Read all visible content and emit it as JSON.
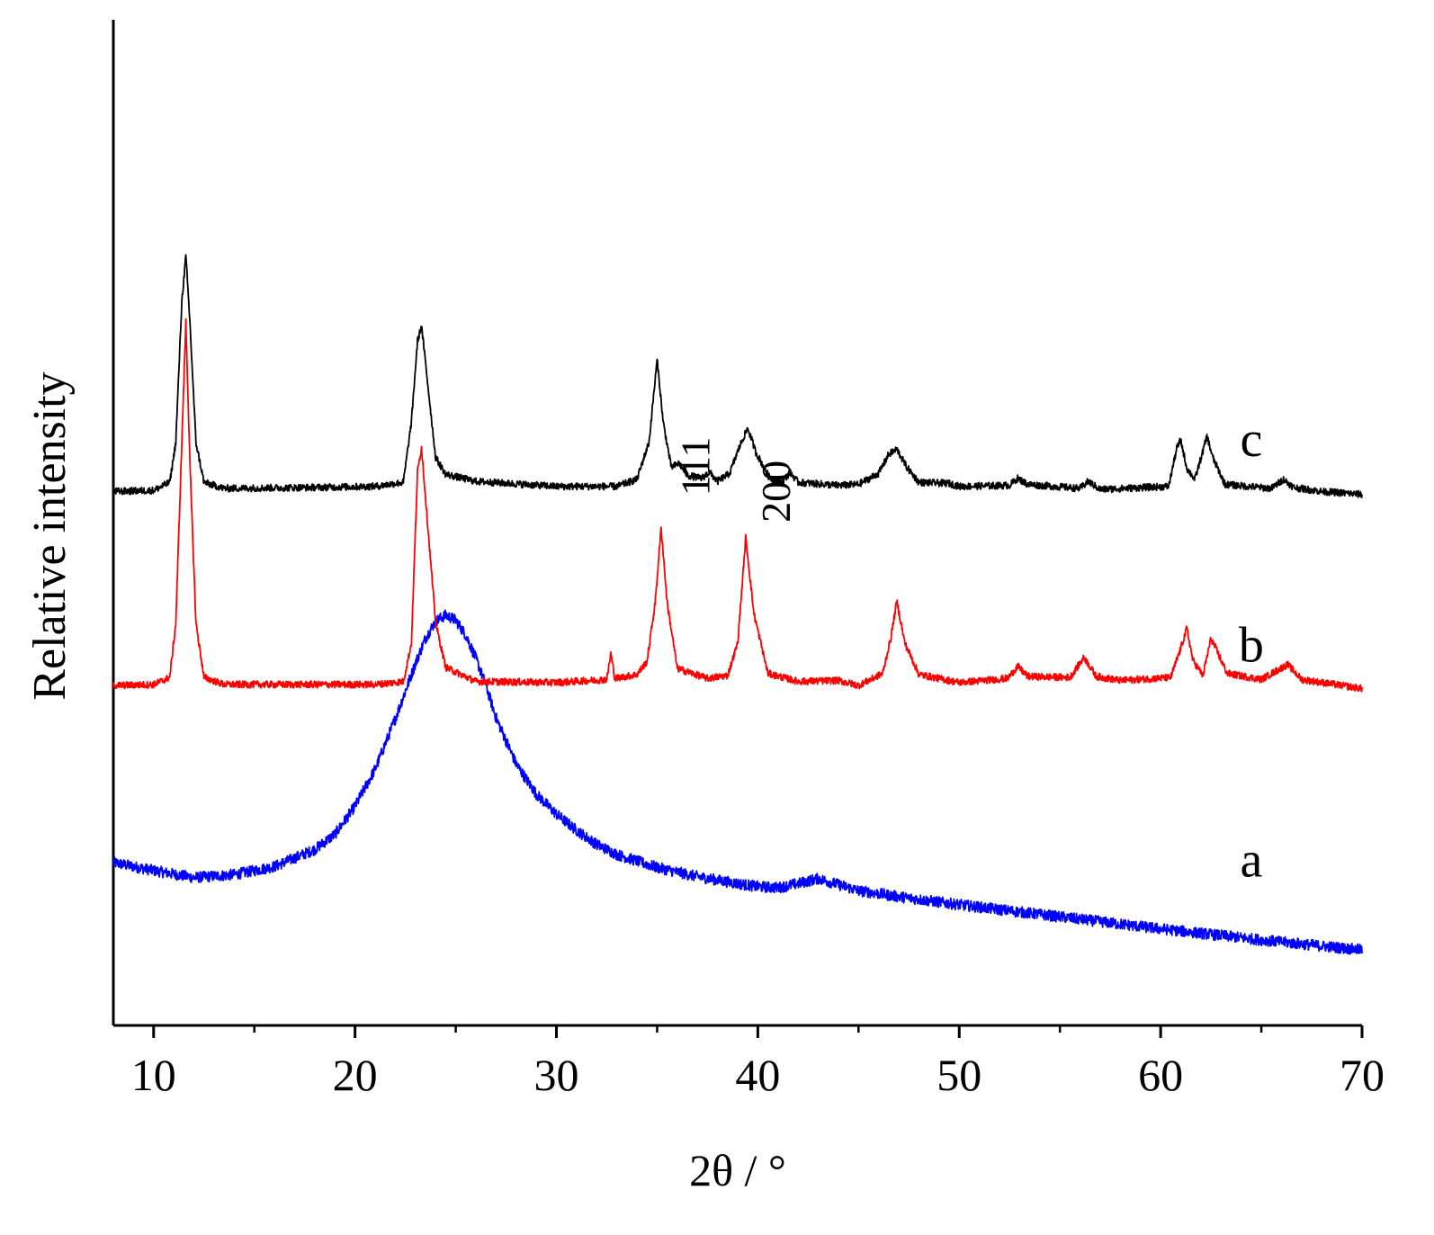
{
  "chart_data": {
    "type": "line",
    "xlabel": "2θ / °",
    "ylabel": "Relative intensity",
    "xlim": [
      8,
      70
    ],
    "ylim": [
      0,
      100
    ],
    "x_ticks": [
      10,
      20,
      30,
      40,
      50,
      60,
      70
    ],
    "x_minor_ticks": [
      15,
      25,
      35,
      45,
      55,
      65
    ],
    "grid": false,
    "y_ticks_shown": false,
    "annotations": [
      {
        "text": "111",
        "x": 37.6,
        "y": 55.6,
        "rotation": -90
      },
      {
        "text": "200",
        "x": 41.6,
        "y": 53.1,
        "rotation": -90
      }
    ],
    "series": [
      {
        "name": "a",
        "color": "#0000ff",
        "label_x": 64.5,
        "label_y": 14.8,
        "points": [
          [
            8,
            16.2
          ],
          [
            10,
            15.4
          ],
          [
            12,
            14.7
          ],
          [
            14,
            15.0
          ],
          [
            16,
            15.8
          ],
          [
            18,
            17.5
          ],
          [
            19,
            19.0
          ],
          [
            20,
            21.8
          ],
          [
            21,
            25.5
          ],
          [
            22,
            30.5
          ],
          [
            23,
            36.0
          ],
          [
            23.5,
            38.5
          ],
          [
            24,
            40.2
          ],
          [
            24.5,
            40.8
          ],
          [
            25,
            40.3
          ],
          [
            25.5,
            38.8
          ],
          [
            26,
            36.5
          ],
          [
            26.5,
            33.8
          ],
          [
            27,
            30.6
          ],
          [
            28,
            26.0
          ],
          [
            29,
            23.0
          ],
          [
            30,
            21.0
          ],
          [
            31,
            19.4
          ],
          [
            32,
            18.0
          ],
          [
            33,
            17.0
          ],
          [
            35,
            15.7
          ],
          [
            37,
            14.8
          ],
          [
            39,
            14.1
          ],
          [
            40,
            13.8
          ],
          [
            41,
            13.7
          ],
          [
            42,
            14.1
          ],
          [
            43,
            14.6
          ],
          [
            44,
            14.0
          ],
          [
            45,
            13.4
          ],
          [
            47,
            12.8
          ],
          [
            50,
            12.0
          ],
          [
            55,
            10.8
          ],
          [
            60,
            9.6
          ],
          [
            65,
            8.5
          ],
          [
            70,
            7.5
          ]
        ]
      },
      {
        "name": "b",
        "color": "#ff0000",
        "label_x": 64.5,
        "label_y": 36.2,
        "points": [
          [
            8,
            33.8
          ],
          [
            10,
            33.9
          ],
          [
            10.8,
            34.6
          ],
          [
            11.1,
            40.0
          ],
          [
            11.4,
            58.0
          ],
          [
            11.6,
            70.0
          ],
          [
            11.8,
            56.0
          ],
          [
            12.1,
            40.0
          ],
          [
            12.5,
            34.6
          ],
          [
            13.5,
            33.9
          ],
          [
            18,
            33.9
          ],
          [
            21,
            33.9
          ],
          [
            22.4,
            34.2
          ],
          [
            22.8,
            38.0
          ],
          [
            23.1,
            55.0
          ],
          [
            23.3,
            57.5
          ],
          [
            23.6,
            50.0
          ],
          [
            24.0,
            40.0
          ],
          [
            24.5,
            35.6
          ],
          [
            26,
            34.2
          ],
          [
            30,
            34.1
          ],
          [
            32.5,
            34.4
          ],
          [
            32.7,
            37.0
          ],
          [
            32.9,
            34.5
          ],
          [
            34.0,
            34.9
          ],
          [
            34.5,
            36.2
          ],
          [
            34.9,
            42.0
          ],
          [
            35.2,
            49.5
          ],
          [
            35.5,
            42.0
          ],
          [
            36.0,
            35.5
          ],
          [
            37.5,
            34.5
          ],
          [
            38.5,
            34.8
          ],
          [
            39.0,
            38.0
          ],
          [
            39.4,
            48.5
          ],
          [
            39.8,
            41.0
          ],
          [
            40.5,
            35.0
          ],
          [
            42,
            34.2
          ],
          [
            44,
            34.3
          ],
          [
            45,
            33.8
          ],
          [
            46.2,
            35.0
          ],
          [
            46.6,
            38.5
          ],
          [
            46.9,
            42.2
          ],
          [
            47.3,
            38.0
          ],
          [
            48,
            34.9
          ],
          [
            50,
            34.1
          ],
          [
            52.4,
            34.5
          ],
          [
            52.9,
            35.7
          ],
          [
            53.4,
            34.7
          ],
          [
            55.5,
            34.6
          ],
          [
            56.2,
            36.6
          ],
          [
            56.8,
            34.7
          ],
          [
            58,
            34.3
          ],
          [
            60.5,
            34.6
          ],
          [
            61.0,
            37.5
          ],
          [
            61.3,
            39.5
          ],
          [
            61.6,
            36.3
          ],
          [
            62.1,
            34.8
          ],
          [
            62.5,
            38.5
          ],
          [
            62.8,
            37.2
          ],
          [
            63.3,
            35.0
          ],
          [
            65,
            34.4
          ],
          [
            66.3,
            35.9
          ],
          [
            67,
            34.4
          ],
          [
            70,
            33.5
          ]
        ]
      },
      {
        "name": "c",
        "color": "#000000",
        "label_x": 64.5,
        "label_y": 56.6,
        "points": [
          [
            8,
            53.1
          ],
          [
            10,
            53.2
          ],
          [
            10.8,
            54.0
          ],
          [
            11.1,
            58.0
          ],
          [
            11.4,
            72.0
          ],
          [
            11.6,
            76.5
          ],
          [
            11.8,
            70.0
          ],
          [
            12.1,
            58.0
          ],
          [
            12.5,
            54.0
          ],
          [
            13.5,
            53.4
          ],
          [
            18,
            53.5
          ],
          [
            21,
            53.6
          ],
          [
            22.4,
            54.0
          ],
          [
            22.8,
            60.0
          ],
          [
            23.1,
            68.0
          ],
          [
            23.3,
            69.6
          ],
          [
            23.6,
            64.0
          ],
          [
            24.0,
            56.5
          ],
          [
            24.5,
            54.8
          ],
          [
            26,
            54.1
          ],
          [
            30,
            53.6
          ],
          [
            33,
            53.6
          ],
          [
            34.0,
            54.3
          ],
          [
            34.3,
            56.2
          ],
          [
            34.6,
            58.0
          ],
          [
            35.0,
            66.2
          ],
          [
            35.3,
            60.0
          ],
          [
            35.7,
            55.5
          ],
          [
            36.1,
            55.9
          ],
          [
            36.5,
            54.7
          ],
          [
            37.2,
            54.4
          ],
          [
            37.6,
            55.0
          ],
          [
            38.0,
            54.1
          ],
          [
            38.6,
            54.9
          ],
          [
            39.1,
            57.6
          ],
          [
            39.5,
            59.4
          ],
          [
            39.9,
            57.0
          ],
          [
            40.6,
            54.4
          ],
          [
            41.2,
            54.0
          ],
          [
            41.6,
            55.0
          ],
          [
            42.0,
            54.0
          ],
          [
            44,
            53.7
          ],
          [
            45,
            53.8
          ],
          [
            46.0,
            54.9
          ],
          [
            46.5,
            56.8
          ],
          [
            46.9,
            57.3
          ],
          [
            47.4,
            55.5
          ],
          [
            48,
            54.0
          ],
          [
            49.5,
            53.9
          ],
          [
            50,
            53.6
          ],
          [
            52.5,
            53.7
          ],
          [
            52.9,
            54.4
          ],
          [
            53.4,
            53.8
          ],
          [
            56,
            53.4
          ],
          [
            56.4,
            54.1
          ],
          [
            57,
            53.3
          ],
          [
            60.4,
            53.6
          ],
          [
            60.8,
            57.4
          ],
          [
            61.0,
            58.2
          ],
          [
            61.3,
            55.4
          ],
          [
            61.7,
            54.3
          ],
          [
            62.1,
            57.1
          ],
          [
            62.3,
            58.6
          ],
          [
            62.6,
            56.4
          ],
          [
            63.2,
            53.8
          ],
          [
            65.5,
            53.4
          ],
          [
            66.1,
            54.3
          ],
          [
            66.6,
            53.5
          ],
          [
            68,
            53.1
          ],
          [
            70,
            52.8
          ]
        ]
      }
    ]
  }
}
